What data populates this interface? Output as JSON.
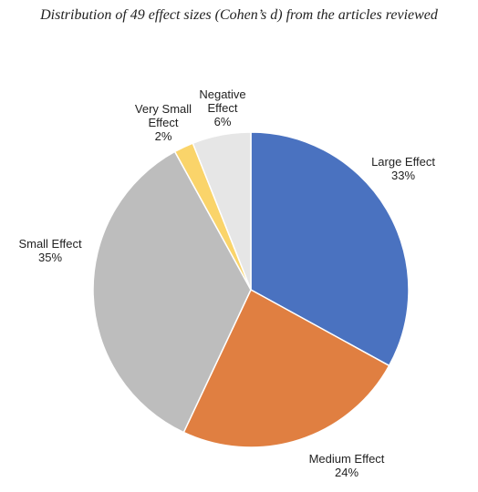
{
  "chart_data": {
    "type": "pie",
    "title": "Distribution of 49 effect sizes (Cohen’s d) from the articles reviewed",
    "slices": [
      {
        "label_lines": [
          "Large Effect"
        ],
        "percent_label": "33%",
        "value": 33,
        "color": "#4a72c0"
      },
      {
        "label_lines": [
          "Medium Effect"
        ],
        "percent_label": "24%",
        "value": 24,
        "color": "#e07f41"
      },
      {
        "label_lines": [
          "Small Effect"
        ],
        "percent_label": "35%",
        "value": 35,
        "color": "#bdbdbd"
      },
      {
        "label_lines": [
          "Very Small",
          "Effect"
        ],
        "percent_label": "2%",
        "value": 2,
        "color": "#fad46a"
      },
      {
        "label_lines": [
          "Negative",
          "Effect"
        ],
        "percent_label": "6%",
        "value": 6,
        "color": "#e6e6e6"
      }
    ],
    "start": "12 o'clock",
    "direction": "clockwise",
    "legend": "none"
  }
}
